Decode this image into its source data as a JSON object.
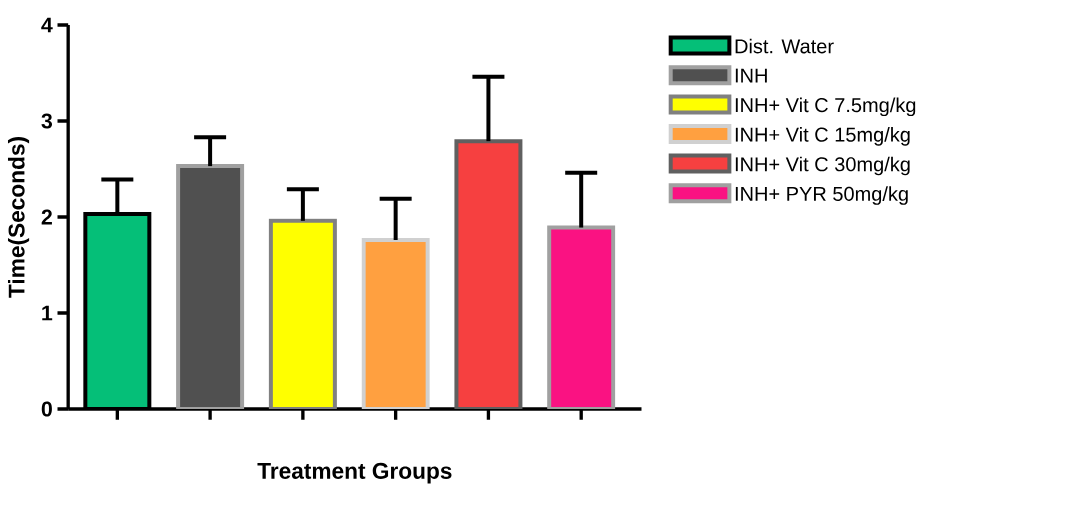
{
  "chart_data": {
    "type": "bar",
    "xlabel": "Treatment Groups",
    "ylabel": "Time(Seconds)",
    "categories": [
      null,
      null,
      null,
      null,
      null,
      null
    ],
    "ylim": [
      0,
      4
    ],
    "yticks": [
      0,
      1,
      2,
      3,
      4
    ],
    "tick_labels": "y",
    "legend": "right",
    "series": [
      {
        "name": "Dist. Water",
        "color": "#05bf78",
        "values": [
          2.03,
          null,
          null,
          null,
          null,
          null
        ],
        "errors": [
          [
            2.03,
            2.39
          ],
          null,
          null,
          null,
          null,
          null
        ]
      },
      {
        "name": "INH",
        "color": "#505050",
        "values": [
          null,
          2.53,
          null,
          null,
          null,
          null
        ],
        "errors": [
          null,
          [
            2.53,
            2.83
          ],
          null,
          null,
          null,
          null
        ]
      },
      {
        "name": "INH+ Vit C 7.5mg/kg",
        "color": "#ffff00",
        "values": [
          null,
          null,
          1.96,
          null,
          null,
          null
        ],
        "errors": [
          null,
          null,
          [
            1.96,
            2.29
          ],
          null,
          null,
          null
        ]
      },
      {
        "name": "INH+ Vit C 15mg/kg",
        "color": "#ffa040",
        "values": [
          null,
          null,
          null,
          1.76,
          null,
          null
        ],
        "errors": [
          null,
          null,
          null,
          [
            1.76,
            2.19
          ],
          null,
          null
        ]
      },
      {
        "name": "INH+ Vit C 30mg/kg",
        "color": "#f64040",
        "values": [
          null,
          null,
          null,
          null,
          2.79,
          null
        ],
        "errors": [
          null,
          null,
          null,
          null,
          [
            2.79,
            3.46
          ],
          null
        ]
      },
      {
        "name": "INH+ PYR 50mg/kg",
        "color": "#fa1282",
        "values": [
          null,
          null,
          null,
          null,
          null,
          1.89
        ],
        "errors": [
          null,
          null,
          null,
          null,
          null,
          [
            1.89,
            2.46
          ]
        ]
      }
    ]
  }
}
